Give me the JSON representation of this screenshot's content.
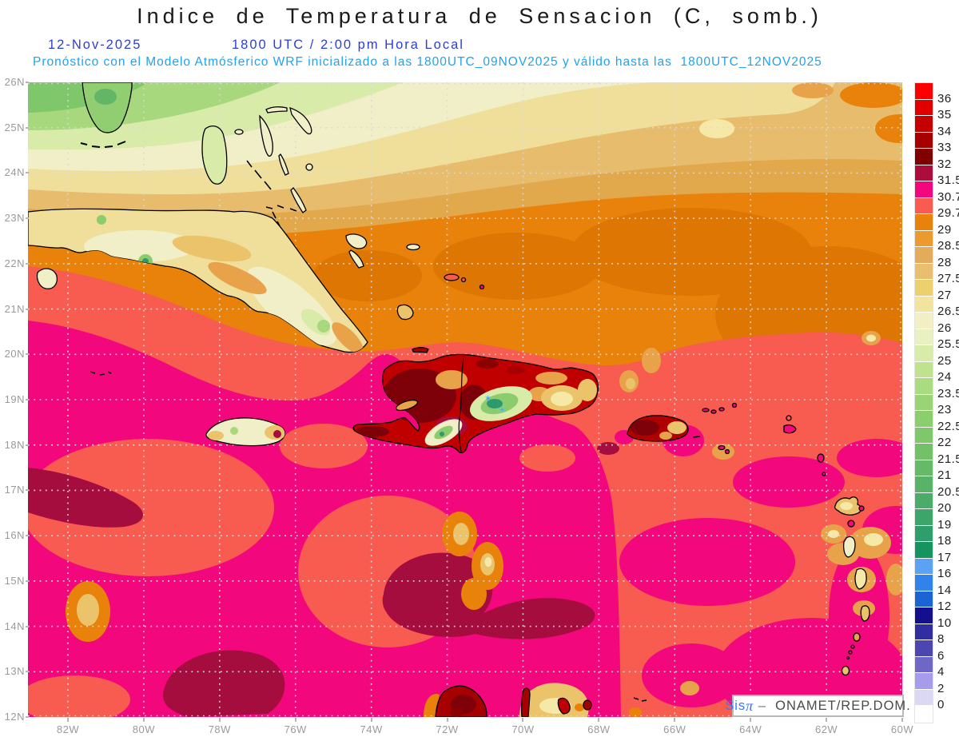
{
  "header": {
    "title": "Indice de Temperatura de Sensacion (C, somb.)",
    "date": "12-Nov-2025",
    "time": "1800 UTC / 2:00 pm Hora Local",
    "note": "Pronóstico con el Modelo Atmósferico WRF inicializado a las 1800UTC_09NOV2025 y válido hasta las  1800UTC_12NOV2025"
  },
  "axes": {
    "lat_labels": [
      "26N",
      "25N",
      "24N",
      "23N",
      "22N",
      "21N",
      "20N",
      "19N",
      "18N",
      "17N",
      "16N",
      "15N",
      "14N",
      "13N",
      "12N"
    ],
    "lon_labels": [
      "82W",
      "80W",
      "78W",
      "76W",
      "74W",
      "72W",
      "70W",
      "68W",
      "66W",
      "64W",
      "62W",
      "60W"
    ]
  },
  "colorbar": {
    "labels": [
      "36",
      "35",
      "34",
      "33",
      "32",
      "31.5",
      "30.7",
      "29.7",
      "29",
      "28.5",
      "28",
      "27.5",
      "27",
      "26.5",
      "26",
      "25.5",
      "25",
      "24",
      "23.5",
      "23",
      "22.5",
      "22",
      "21.5",
      "21",
      "20.5",
      "20",
      "19",
      "18",
      "17",
      "16",
      "14",
      "12",
      "10",
      "8",
      "6",
      "4",
      "2",
      "0"
    ],
    "colors": [
      "#FC0000",
      "#E00000",
      "#C40000",
      "#A60000",
      "#800000",
      "#AC0D3C",
      "#F2077C",
      "#F85B50",
      "#E8820A",
      "#EB9A2E",
      "#E2AC5C",
      "#E9BE71",
      "#EDD06E",
      "#F2E49C",
      "#F2EFC5",
      "#E9F0C2",
      "#D9EBA8",
      "#BFE28E",
      "#ABDB80",
      "#9BD476",
      "#8CCD6E",
      "#7FC76B",
      "#73C069",
      "#65B967",
      "#58B267",
      "#4BAB68",
      "#3DA46A",
      "#2F9D6C",
      "#16945F",
      "#5CA2F2",
      "#3182EA",
      "#1C64D4",
      "#140F8F",
      "#322DA0",
      "#4C46B0",
      "#6F67C6",
      "#A59DEC",
      "#DBD8F4",
      "#FFFFFF"
    ]
  },
  "credit": {
    "brand": "Sis",
    "pi": "π",
    "separator": " –  ",
    "org": "ONAMET/REP.DOM."
  },
  "markers": {
    "star": "✶",
    "plus": "+",
    "color": "#3FA9F5"
  },
  "palette": {
    "magenta": "#F2077C",
    "salmon": "#F85B50",
    "orange": "#E8820A",
    "dark_orange": "#DD7603",
    "tan": "#E2A84C",
    "light_tan": "#E7BC6D",
    "pale_yellow": "#F0DF9A",
    "cream": "#F1EFC8",
    "pale_green": "#D9EBA8",
    "green": "#A8D87E",
    "deep_green": "#7FC76B",
    "crimson": "#A60D3F",
    "red": "#C00000",
    "maroon": "#7E0008",
    "grid": "#D9D9D9",
    "coastline": "#000000",
    "axis_text": "#9A9A9A",
    "date_blue": "#2B3FD6",
    "note_cyan": "#1FA3F0"
  }
}
